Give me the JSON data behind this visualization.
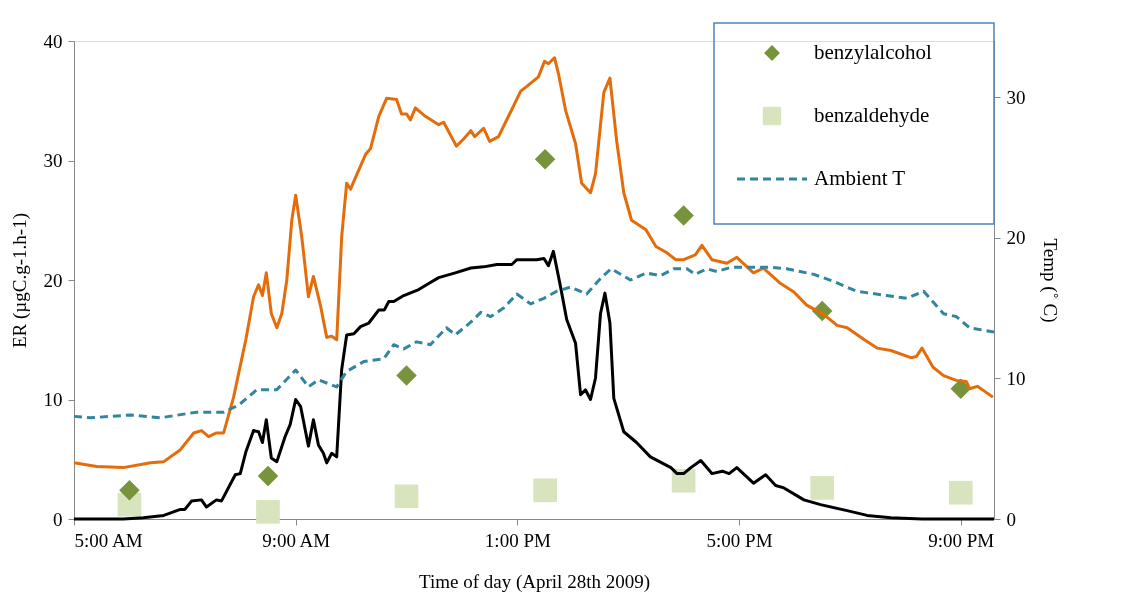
{
  "chart_data": {
    "type": "line",
    "xlabel": "Time of day (April 28th 2009)",
    "ylabel": "ER (µgC.g-1.h-1)",
    "y2label": "Temp (˚ C)",
    "xlim": [
      5,
      21.6
    ],
    "xticks": [
      {
        "value": 5,
        "label": "5:00 AM"
      },
      {
        "value": 9,
        "label": "9:00 AM"
      },
      {
        "value": 13,
        "label": "1:00 PM"
      },
      {
        "value": 17,
        "label": "5:00 PM"
      },
      {
        "value": 21,
        "label": "9:00 PM"
      }
    ],
    "ylim": [
      0,
      40
    ],
    "yticks": [
      0,
      10,
      20,
      30,
      40
    ],
    "y2lim": [
      0,
      34
    ],
    "y2ticks": [
      0,
      10,
      20,
      30
    ],
    "grid": false,
    "legend": "top right",
    "series": [
      {
        "color": "#e46c0a",
        "x": [
          5.0,
          5.41,
          5.89,
          6.38,
          6.62,
          6.92,
          7.16,
          7.3,
          7.43,
          7.57,
          7.7,
          7.88,
          8.1,
          8.24,
          8.33,
          8.4,
          8.47,
          8.56,
          8.66,
          8.75,
          8.84,
          8.93,
          9.0,
          9.11,
          9.23,
          9.32,
          9.45,
          9.56,
          9.65,
          9.74,
          9.83,
          9.92,
          9.99,
          10.1,
          10.26,
          10.35,
          10.5,
          10.64,
          10.82,
          10.91,
          11.0,
          11.07,
          11.16,
          11.34,
          11.58,
          11.67,
          11.9,
          12.03,
          12.16,
          12.23,
          12.39,
          12.5,
          12.66,
          12.84,
          13.06,
          13.17,
          13.38,
          13.49,
          13.56,
          13.67,
          13.74,
          13.87,
          14.05,
          14.16,
          14.32,
          14.41,
          14.56,
          14.67,
          14.79,
          14.92,
          15.06,
          15.32,
          15.5,
          15.69,
          15.86,
          16.0,
          16.21,
          16.33,
          16.51,
          16.78,
          16.96,
          17.26,
          17.44,
          17.75,
          17.99,
          18.22,
          18.53,
          18.77,
          18.95,
          19.26,
          19.49,
          19.74,
          20.1,
          20.2,
          20.3,
          20.5,
          20.69,
          20.92,
          21.1,
          21.16,
          21.3,
          21.58
        ],
        "values": [
          4.7,
          4.4,
          4.3,
          4.7,
          4.8,
          5.8,
          7.2,
          7.4,
          6.9,
          7.2,
          7.2,
          10.2,
          15.0,
          18.6,
          19.6,
          18.7,
          20.6,
          17.2,
          16.0,
          17.2,
          20.0,
          25.0,
          27.1,
          23.6,
          18.6,
          20.3,
          17.8,
          15.2,
          15.3,
          15.0,
          23.6,
          28.1,
          27.6,
          28.8,
          30.5,
          31.0,
          33.7,
          35.2,
          35.1,
          33.9,
          33.9,
          33.4,
          34.4,
          33.7,
          33.0,
          33.2,
          31.2,
          31.8,
          32.5,
          32.0,
          32.7,
          31.6,
          32.0,
          33.7,
          35.8,
          36.2,
          37.0,
          38.3,
          38.1,
          38.6,
          37.3,
          34.2,
          31.4,
          28.1,
          27.3,
          28.9,
          35.7,
          36.9,
          31.7,
          27.3,
          25.0,
          24.2,
          22.8,
          22.3,
          21.7,
          21.7,
          22.1,
          22.9,
          21.7,
          21.4,
          21.9,
          20.6,
          21.0,
          19.7,
          19.0,
          17.9,
          17.1,
          16.2,
          16.0,
          15.0,
          14.3,
          14.1,
          13.5,
          13.6,
          14.3,
          12.7,
          12.0,
          11.6,
          11.5,
          10.9,
          11.1,
          10.2
        ]
      },
      {
        "color": "#000000",
        "x": [
          5.0,
          5.89,
          6.25,
          6.62,
          6.92,
          7.0,
          7.12,
          7.3,
          7.39,
          7.57,
          7.66,
          7.91,
          8.0,
          8.1,
          8.24,
          8.33,
          8.4,
          8.47,
          8.56,
          8.66,
          8.81,
          8.9,
          9.0,
          9.09,
          9.23,
          9.32,
          9.41,
          9.5,
          9.56,
          9.65,
          9.74,
          9.83,
          9.92,
          10.05,
          10.17,
          10.32,
          10.5,
          10.6,
          10.68,
          10.77,
          10.95,
          11.22,
          11.4,
          11.58,
          11.88,
          12.16,
          12.39,
          12.63,
          12.9,
          12.99,
          13.35,
          13.48,
          13.56,
          13.65,
          13.78,
          13.89,
          14.05,
          14.14,
          14.23,
          14.32,
          14.41,
          14.5,
          14.58,
          14.67,
          14.74,
          14.92,
          15.15,
          15.4,
          15.77,
          15.88,
          16.0,
          16.13,
          16.31,
          16.51,
          16.7,
          16.82,
          16.96,
          17.26,
          17.48,
          17.66,
          17.81,
          18.17,
          18.47,
          18.95,
          19.31,
          19.74,
          20.3,
          21.6
        ],
        "values": [
          0,
          0,
          0.1,
          0.3,
          0.8,
          0.8,
          1.5,
          1.6,
          1.0,
          1.6,
          1.5,
          3.7,
          3.8,
          5.6,
          7.4,
          7.3,
          6.4,
          8.3,
          5.1,
          4.8,
          6.9,
          7.9,
          10.0,
          9.4,
          6.1,
          8.3,
          6.2,
          5.5,
          4.7,
          5.5,
          5.2,
          12.5,
          15.4,
          15.5,
          16.1,
          16.4,
          17.5,
          17.5,
          18.2,
          18.2,
          18.7,
          19.2,
          19.7,
          20.2,
          20.6,
          21.0,
          21.1,
          21.3,
          21.3,
          21.7,
          21.7,
          21.8,
          21.2,
          22.4,
          19.4,
          16.7,
          14.7,
          10.4,
          10.8,
          10.0,
          11.8,
          17.2,
          18.9,
          16.4,
          10.1,
          7.3,
          6.4,
          5.2,
          4.3,
          3.8,
          3.8,
          4.3,
          4.9,
          3.8,
          4.0,
          3.8,
          4.3,
          3.0,
          3.7,
          2.8,
          2.6,
          1.6,
          1.2,
          0.7,
          0.3,
          0.1,
          0,
          0
        ]
      },
      {
        "type": "scatter",
        "name": "benzylalcohol",
        "color": "#77933c",
        "marker": "diamond",
        "x": [
          6,
          8.5,
          11,
          13.5,
          16,
          18.5,
          21
        ],
        "values": [
          2.4,
          3.6,
          12.0,
          30.1,
          25.4,
          17.4,
          10.9
        ]
      },
      {
        "type": "scatter",
        "name": "benzaldehyde",
        "color": "#d7e4bd",
        "marker": "square",
        "x": [
          6,
          8.5,
          11,
          13.5,
          16,
          18.5,
          21
        ],
        "values": [
          1.2,
          0.6,
          1.9,
          2.4,
          3.2,
          2.6,
          2.2
        ]
      },
      {
        "name": "Ambient T",
        "color": "#31859c",
        "line_style": "dashed",
        "axis": "y2",
        "x": [
          5.0,
          5.3,
          6.02,
          6.56,
          7.21,
          7.7,
          7.97,
          8.3,
          8.66,
          9.0,
          9.23,
          9.41,
          9.74,
          9.92,
          10.23,
          10.59,
          10.77,
          10.95,
          11.18,
          11.43,
          11.72,
          11.88,
          12.16,
          12.34,
          12.52,
          12.75,
          12.99,
          13.24,
          13.48,
          13.71,
          13.96,
          14.25,
          14.5,
          14.69,
          15.04,
          15.33,
          15.58,
          15.82,
          16.06,
          16.21,
          16.42,
          16.6,
          16.85,
          17.57,
          17.86,
          18.35,
          18.71,
          19.12,
          19.66,
          20.03,
          20.33,
          20.69,
          20.92,
          21.16,
          21.6
        ],
        "values": [
          7.3,
          7.2,
          7.4,
          7.2,
          7.6,
          7.6,
          8.1,
          9.2,
          9.2,
          10.6,
          9.4,
          9.9,
          9.4,
          10.5,
          11.2,
          11.4,
          12.4,
          12.1,
          12.6,
          12.4,
          13.6,
          13.1,
          14.0,
          14.7,
          14.4,
          15.0,
          16.0,
          15.3,
          15.7,
          16.2,
          16.5,
          16.0,
          17.1,
          17.8,
          17.0,
          17.5,
          17.3,
          17.8,
          17.8,
          17.4,
          17.8,
          17.6,
          17.9,
          17.9,
          17.8,
          17.4,
          16.9,
          16.2,
          15.9,
          15.7,
          16.2,
          14.6,
          14.4,
          13.6,
          13.3
        ]
      }
    ]
  }
}
